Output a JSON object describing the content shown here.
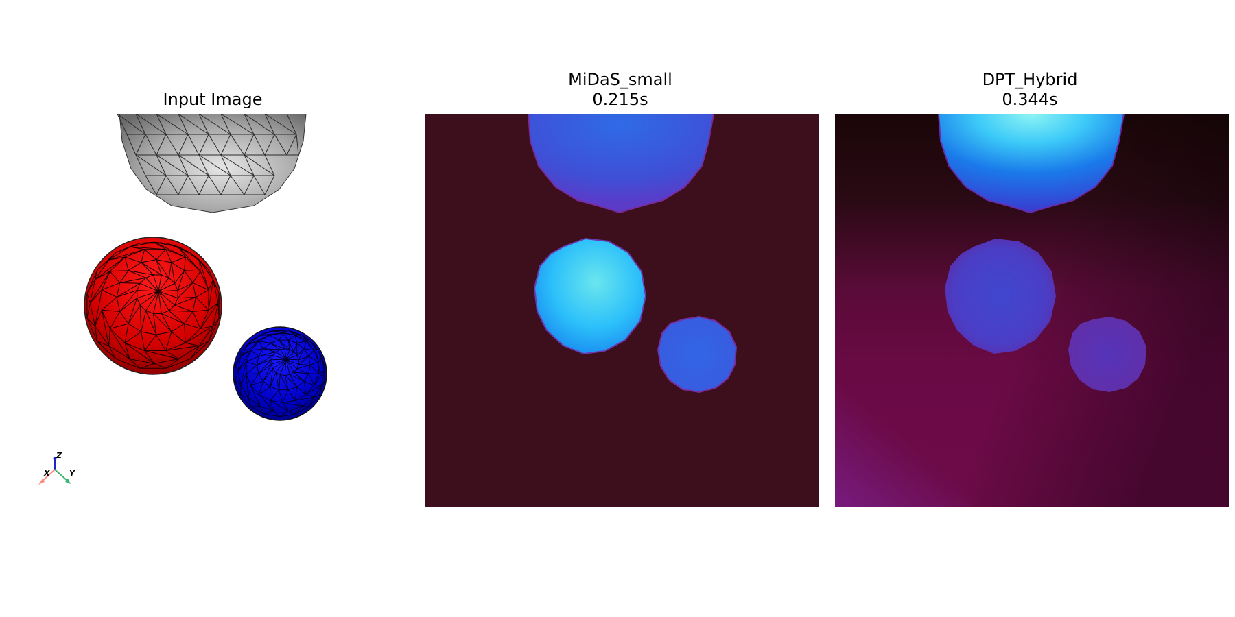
{
  "panels": [
    {
      "title": "Input Image",
      "subtitle": ""
    },
    {
      "title": "MiDaS_small",
      "subtitle": "0.215s"
    },
    {
      "title": "DPT_Hybrid",
      "subtitle": "0.344s"
    }
  ],
  "axes_widget": {
    "x": "X",
    "y": "Y",
    "z": "Z"
  },
  "colors": {
    "midas_background": "#3d0e1c",
    "dpt_background": "#6a0a45",
    "red_sphere": "#e60000",
    "blue_sphere": "#0000d4",
    "gray_sphere": "#b4b4b4"
  }
}
